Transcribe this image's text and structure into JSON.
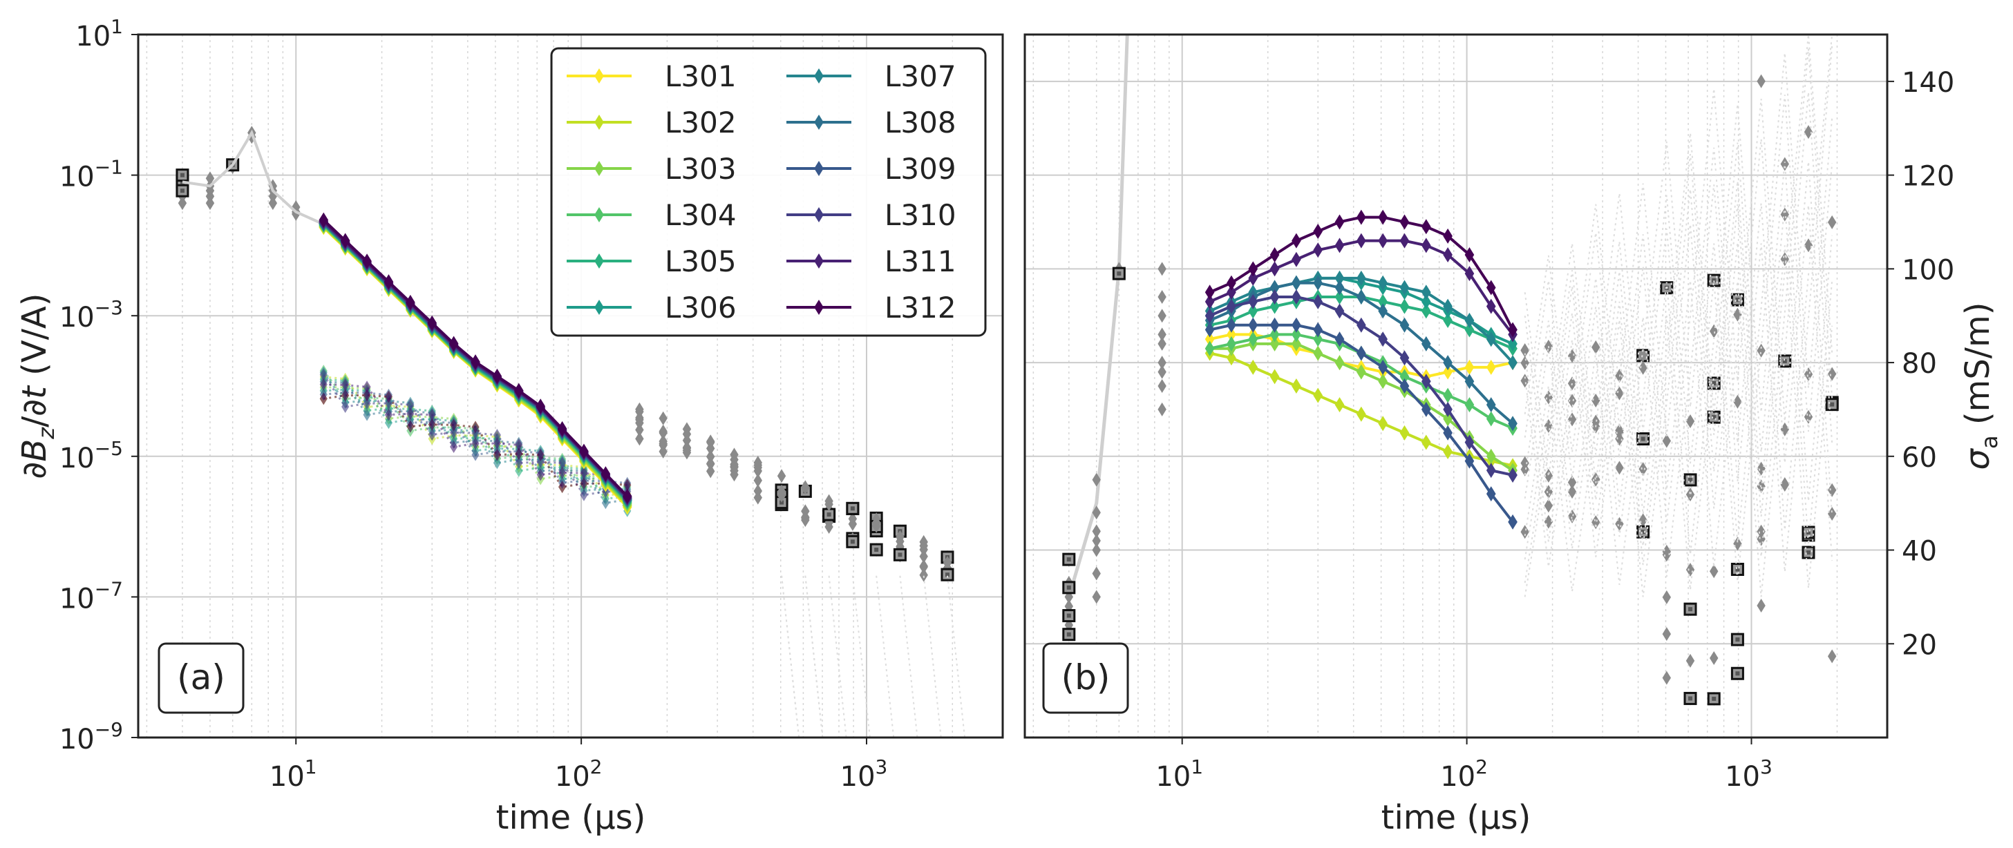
{
  "chart_data": [
    {
      "panel": "a",
      "type": "line",
      "panel_label": "(a)",
      "xlabel": "time (µs)",
      "ylabel": "∂B_z/∂t (V/A)",
      "xscale": "log",
      "yscale": "log",
      "xlim": [
        2.8,
        3000
      ],
      "ylim": [
        1e-09,
        10
      ],
      "x_ticks": [
        {
          "value": 10,
          "base": "10",
          "exp": "1"
        },
        {
          "value": 100,
          "base": "10",
          "exp": "2"
        },
        {
          "value": 1000,
          "base": "10",
          "exp": "3"
        }
      ],
      "y_ticks": [
        {
          "value": 1e-09,
          "base": "10",
          "exp": "−9"
        },
        {
          "value": 1e-07,
          "base": "10",
          "exp": "−7"
        },
        {
          "value": 1e-05,
          "base": "10",
          "exp": "−5"
        },
        {
          "value": 0.001,
          "base": "10",
          "exp": "−3"
        },
        {
          "value": 0.1,
          "base": "10",
          "exp": "−1"
        },
        {
          "value": 10,
          "base": "10",
          "exp": "1"
        }
      ],
      "legend": {
        "placement": "top-right",
        "columns": 2
      },
      "series": [
        {
          "name": "L301",
          "color": "#fde725",
          "values": [
            0.018,
            0.0002,
            4.2e-05,
            1.9e-06
          ]
        },
        {
          "name": "L302",
          "color": "#c2df23",
          "values": [
            0.0185,
            0.000205,
            4.4e-05,
            2e-06
          ]
        },
        {
          "name": "L303",
          "color": "#86d549",
          "values": [
            0.019,
            0.00021,
            4.6e-05,
            2.1e-06
          ]
        },
        {
          "name": "L304",
          "color": "#52c569",
          "values": [
            0.0195,
            0.000215,
            4.8e-05,
            2.2e-06
          ]
        },
        {
          "name": "L305",
          "color": "#2ab07f",
          "values": [
            0.02,
            0.00022,
            5e-05,
            2.3e-06
          ]
        },
        {
          "name": "L306",
          "color": "#1e9b8a",
          "values": [
            0.0202,
            0.000225,
            5.1e-05,
            2.35e-06
          ]
        },
        {
          "name": "L307",
          "color": "#25858e",
          "values": [
            0.0205,
            0.00023,
            5.2e-05,
            2.4e-06
          ]
        },
        {
          "name": "L308",
          "color": "#2d708e",
          "values": [
            0.0208,
            0.000235,
            5.3e-05,
            2.45e-06
          ]
        },
        {
          "name": "L309",
          "color": "#38588c",
          "values": [
            0.021,
            0.00024,
            5.4e-05,
            2.5e-06
          ]
        },
        {
          "name": "L310",
          "color": "#433e85",
          "values": [
            0.0215,
            0.000245,
            5.5e-05,
            2.55e-06
          ]
        },
        {
          "name": "L311",
          "color": "#482173",
          "values": [
            0.022,
            0.00025,
            5.6e-05,
            2.6e-06
          ]
        },
        {
          "name": "L312",
          "color": "#440154",
          "values": [
            0.023,
            0.00026,
            5.8e-05,
            2.7e-06
          ]
        }
      ]
    },
    {
      "panel": "b",
      "type": "line",
      "panel_label": "(b)",
      "xlabel": "time (µs)",
      "ylabel": "σ_a (mS/m)",
      "xscale": "log",
      "yscale": "linear",
      "xlim": [
        2.8,
        3000
      ],
      "ylim": [
        0,
        150
      ],
      "x_ticks": [
        {
          "value": 10,
          "base": "10",
          "exp": "1"
        },
        {
          "value": 100,
          "base": "10",
          "exp": "2"
        },
        {
          "value": 1000,
          "base": "10",
          "exp": "3"
        }
      ],
      "y_ticks": [
        20,
        40,
        60,
        80,
        100,
        120,
        140
      ],
      "series": [
        {
          "name": "L301",
          "values": [
            85,
            86,
            86,
            85,
            83,
            82,
            80,
            79,
            78,
            78,
            77,
            78,
            79,
            79,
            80
          ]
        },
        {
          "name": "L302",
          "values": [
            82,
            81,
            79,
            77,
            75,
            73,
            71,
            69,
            67,
            65,
            63,
            61,
            60,
            59,
            58
          ]
        },
        {
          "name": "L303",
          "values": [
            83,
            83,
            84,
            84,
            84,
            82,
            80,
            78,
            76,
            74,
            71,
            68,
            64,
            60,
            57
          ]
        },
        {
          "name": "L304",
          "values": [
            83,
            84,
            85,
            86,
            86,
            85,
            84,
            82,
            80,
            77,
            75,
            73,
            71,
            68,
            66
          ]
        },
        {
          "name": "L305",
          "values": [
            88,
            89,
            91,
            92,
            93,
            94,
            94,
            94,
            93,
            92,
            91,
            89,
            87,
            85,
            83
          ]
        },
        {
          "name": "L306",
          "values": [
            90,
            92,
            94,
            96,
            97,
            98,
            98,
            97,
            96,
            95,
            93,
            91,
            89,
            86,
            84
          ]
        },
        {
          "name": "L307",
          "values": [
            91,
            93,
            95,
            96,
            97,
            98,
            98,
            98,
            97,
            96,
            95,
            92,
            89,
            85,
            80
          ]
        },
        {
          "name": "L308",
          "values": [
            89,
            91,
            94,
            96,
            97,
            97,
            96,
            94,
            91,
            88,
            84,
            80,
            76,
            71,
            67
          ]
        },
        {
          "name": "L309",
          "values": [
            87,
            88,
            88,
            88,
            88,
            87,
            85,
            82,
            79,
            75,
            70,
            65,
            59,
            52,
            46
          ]
        },
        {
          "name": "L310",
          "values": [
            90,
            92,
            93,
            94,
            94,
            93,
            91,
            88,
            85,
            81,
            76,
            70,
            63,
            57,
            56
          ]
        },
        {
          "name": "L311",
          "values": [
            93,
            95,
            98,
            100,
            102,
            104,
            105,
            106,
            106,
            106,
            105,
            103,
            99,
            92,
            86
          ]
        },
        {
          "name": "L312",
          "values": [
            95,
            97,
            100,
            103,
            106,
            108,
            110,
            111,
            111,
            110,
            109,
            107,
            103,
            96,
            87
          ]
        }
      ]
    }
  ]
}
